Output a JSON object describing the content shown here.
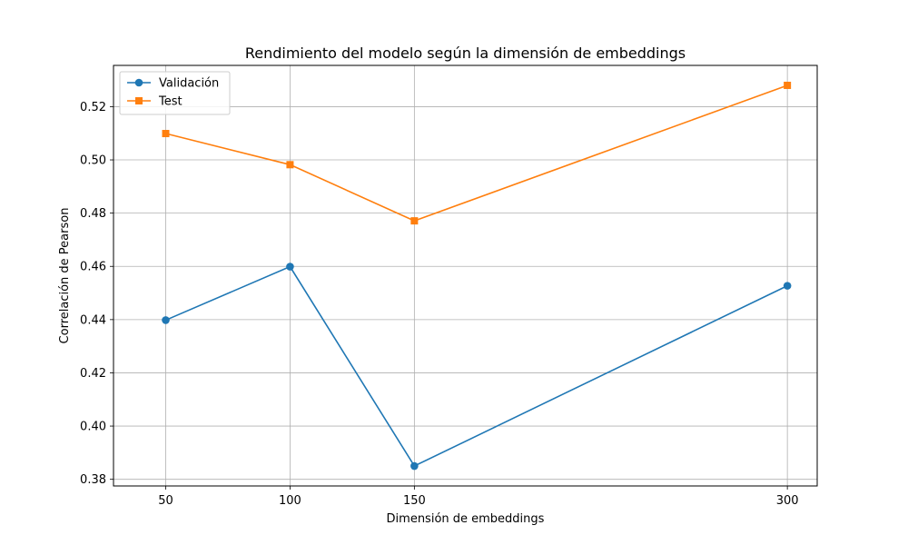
{
  "chart_data": {
    "type": "line",
    "title": "Rendimiento del modelo según la dimensión de embeddings",
    "xlabel": "Dimensión de embeddings",
    "ylabel": "Correlación de Pearson",
    "x": [
      50,
      100,
      150,
      300
    ],
    "xticks": [
      50,
      100,
      150,
      300
    ],
    "xlim": [
      29,
      312
    ],
    "ylim": [
      0.3775,
      0.5355
    ],
    "yticks": [
      0.38,
      0.4,
      0.42,
      0.44,
      0.46,
      0.48,
      0.5,
      0.52
    ],
    "ytick_labels": [
      "0.38",
      "0.40",
      "0.42",
      "0.44",
      "0.46",
      "0.48",
      "0.50",
      "0.52"
    ],
    "grid": true,
    "legend_position": "upper-left",
    "series": [
      {
        "name": "Validación",
        "values": [
          0.4398,
          0.4599,
          0.385,
          0.4527
        ],
        "color": "#1f77b4",
        "marker": "circle"
      },
      {
        "name": "Test",
        "values": [
          0.5099,
          0.4982,
          0.4771,
          0.528
        ],
        "color": "#ff7f0e",
        "marker": "square"
      }
    ]
  }
}
